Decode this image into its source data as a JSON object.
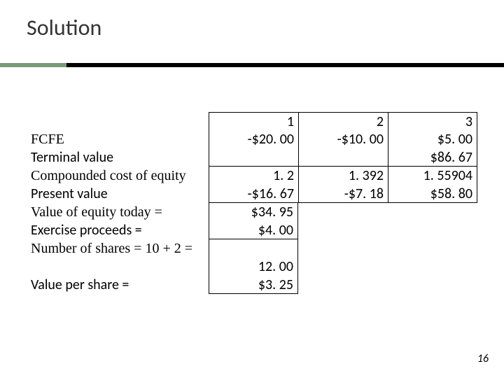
{
  "title": "Solution",
  "pageNumber": "16",
  "rows": {
    "header": {
      "c1": "1",
      "c2": "2",
      "c3": "3"
    },
    "fcfe": {
      "label": "FCFE",
      "c1": "-$20. 00",
      "c2": "-$10. 00",
      "c3": "$5. 00"
    },
    "terminal": {
      "label": "Terminal value",
      "c3": "$86. 67"
    },
    "compound": {
      "label": "Compounded cost of equity",
      "c1": "1. 2",
      "c2": "1. 392",
      "c3": "1. 55904"
    },
    "pv": {
      "label": "Present value",
      "c1": "-$16. 67",
      "c2": "-$7. 18",
      "c3": "$58. 80"
    },
    "veq": {
      "label": "Value of equity today =",
      "c1": "$34. 95"
    },
    "exproc": {
      "label": "Exercise proceeds =",
      "c1": "$4. 00"
    },
    "nshares": {
      "label": "Number of shares = 10 + 2 ="
    },
    "nshares2": {
      "c1": "12. 00"
    },
    "vps": {
      "label": "Value per share =",
      "c1": "$3. 25"
    }
  },
  "colors": {
    "accentGreen": "#7a9a7a",
    "accentDark": "#000000",
    "text": "#000000",
    "background": "#ffffff"
  }
}
